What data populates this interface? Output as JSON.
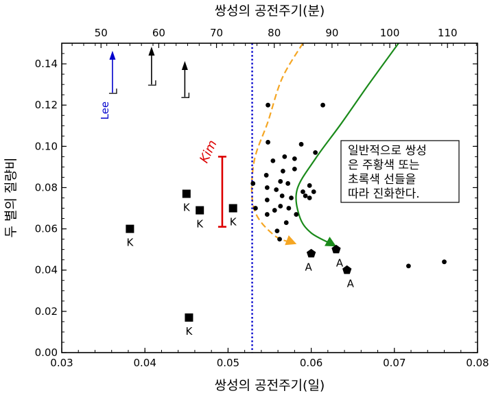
{
  "chart_data": {
    "type": "scatter",
    "xlabel": "쌍성의 공전주기(일)",
    "ylabel": "두 별의 질량비",
    "x2label": "쌍성의 공전주기(분)",
    "xlim": [
      0.03,
      0.08
    ],
    "ylim": [
      0.0,
      0.15
    ],
    "x2lim": [
      43.2,
      115.2
    ],
    "xticks": [
      "0.03",
      "0.04",
      "0.05",
      "0.06",
      "0.07",
      "0.08"
    ],
    "yticks": [
      "0.00",
      "0.02",
      "0.04",
      "0.06",
      "0.08",
      "0.10",
      "0.12",
      "0.14"
    ],
    "x2ticks": [
      "50",
      "60",
      "70",
      "80",
      "90",
      "100",
      "110"
    ],
    "grid": false,
    "period_minimum_line": {
      "x": 0.0529,
      "color": "#0000cc"
    },
    "series": [
      {
        "marker": "square",
        "points": [
          {
            "x": 0.0382,
            "y": 0.06,
            "label": "K"
          },
          {
            "x": 0.045,
            "y": 0.077,
            "label": "K"
          },
          {
            "x": 0.0466,
            "y": 0.069,
            "label": "K"
          },
          {
            "x": 0.0506,
            "y": 0.07,
            "label": "K"
          },
          {
            "x": 0.0453,
            "y": 0.017,
            "label": "K"
          }
        ]
      },
      {
        "marker": "pentagon",
        "points": [
          {
            "x": 0.06,
            "y": 0.048,
            "label": "A"
          },
          {
            "x": 0.063,
            "y": 0.05,
            "label": "A"
          },
          {
            "x": 0.0643,
            "y": 0.04,
            "label": "A"
          }
        ]
      },
      {
        "marker": "dot",
        "points": [
          {
            "x": 0.0548,
            "y": 0.12
          },
          {
            "x": 0.0614,
            "y": 0.12
          },
          {
            "x": 0.0548,
            "y": 0.102
          },
          {
            "x": 0.0588,
            "y": 0.101
          },
          {
            "x": 0.0605,
            "y": 0.097
          },
          {
            "x": 0.0554,
            "y": 0.093
          },
          {
            "x": 0.0568,
            "y": 0.095
          },
          {
            "x": 0.058,
            "y": 0.094
          },
          {
            "x": 0.0546,
            "y": 0.086
          },
          {
            "x": 0.0566,
            "y": 0.088
          },
          {
            "x": 0.058,
            "y": 0.089
          },
          {
            "x": 0.053,
            "y": 0.082
          },
          {
            "x": 0.0547,
            "y": 0.08
          },
          {
            "x": 0.0563,
            "y": 0.083
          },
          {
            "x": 0.0572,
            "y": 0.082
          },
          {
            "x": 0.0558,
            "y": 0.079
          },
          {
            "x": 0.0565,
            "y": 0.076
          },
          {
            "x": 0.059,
            "y": 0.078
          },
          {
            "x": 0.0598,
            "y": 0.081
          },
          {
            "x": 0.0603,
            "y": 0.078
          },
          {
            "x": 0.0593,
            "y": 0.076
          },
          {
            "x": 0.0598,
            "y": 0.075
          },
          {
            "x": 0.0547,
            "y": 0.074
          },
          {
            "x": 0.0576,
            "y": 0.075
          },
          {
            "x": 0.0563,
            "y": 0.071
          },
          {
            "x": 0.0573,
            "y": 0.07
          },
          {
            "x": 0.0556,
            "y": 0.069
          },
          {
            "x": 0.0533,
            "y": 0.07
          },
          {
            "x": 0.0547,
            "y": 0.067
          },
          {
            "x": 0.0582,
            "y": 0.067
          },
          {
            "x": 0.057,
            "y": 0.063
          },
          {
            "x": 0.0559,
            "y": 0.059
          },
          {
            "x": 0.0562,
            "y": 0.055
          },
          {
            "x": 0.0717,
            "y": 0.042
          },
          {
            "x": 0.076,
            "y": 0.044
          }
        ]
      }
    ],
    "lower_limit_arrows": [
      {
        "x": 0.0361,
        "y_from": 0.126,
        "y_to": 0.146,
        "label": "Lee",
        "color": "#0000cc"
      },
      {
        "x": 0.0408,
        "y_from": 0.13,
        "y_to": 0.148,
        "color": "#000000"
      },
      {
        "x": 0.0448,
        "y_from": 0.124,
        "y_to": 0.141,
        "color": "#000000"
      }
    ],
    "range_bar": {
      "label": "Kim",
      "x": 0.0493,
      "y_low": 0.061,
      "y_high": 0.095,
      "color": "#dd0000"
    },
    "evolution_tracks": [
      {
        "color": "#f5a623",
        "style": "dashed",
        "points": [
          [
            0.059,
            0.15
          ],
          [
            0.0565,
            0.133
          ],
          [
            0.0548,
            0.112
          ],
          [
            0.0531,
            0.092
          ],
          [
            0.0531,
            0.07
          ],
          [
            0.0555,
            0.057
          ],
          [
            0.058,
            0.053
          ]
        ]
      },
      {
        "color": "#1a8a1a",
        "style": "solid",
        "points": [
          [
            0.0705,
            0.15
          ],
          [
            0.0669,
            0.13
          ],
          [
            0.0636,
            0.111
          ],
          [
            0.0605,
            0.094
          ],
          [
            0.0583,
            0.079
          ],
          [
            0.0586,
            0.066
          ],
          [
            0.06,
            0.058
          ],
          [
            0.0628,
            0.052
          ]
        ]
      }
    ],
    "annotation": "일반적으로 쌍성은 주황색 또는 초록색 선들을 따라 진화한다.",
    "annotation_lines": [
      "일반적으로 쌍성",
      "은 주황색 또는",
      "초록색 선들을",
      "따라 진화한다."
    ]
  }
}
